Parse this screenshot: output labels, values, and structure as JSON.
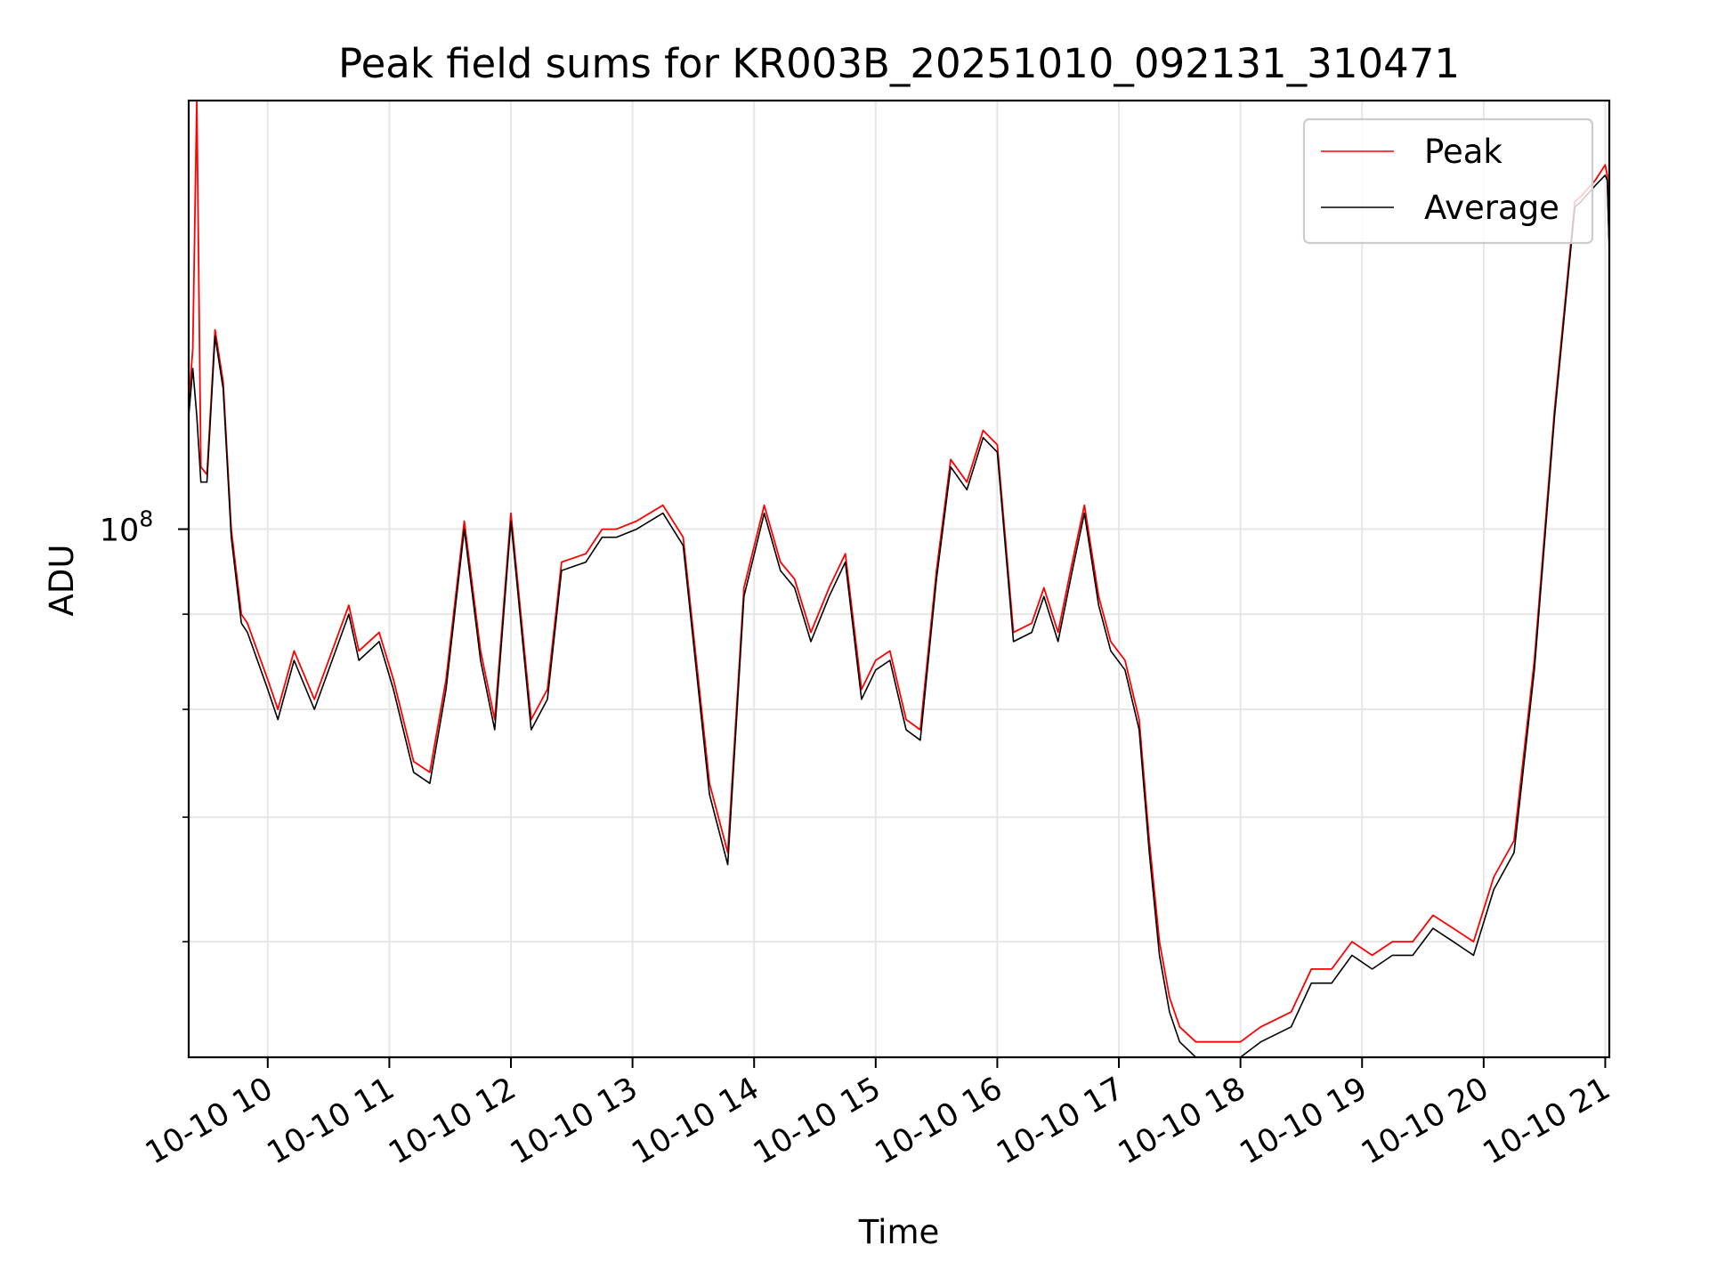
{
  "chart_data": {
    "type": "line",
    "title": "Peak field sums for KR003B_20251010_092131_310471",
    "xlabel": "Time",
    "ylabel": "ADU",
    "yscale": "log",
    "xlim": [
      "2025-10-10 09:21",
      "2025-10-10 21:02"
    ],
    "ylim": [
      52000000,
      170000000
    ],
    "grid": true,
    "legend": {
      "placement": "top-right",
      "entries": [
        "Peak",
        "Average"
      ]
    },
    "x_ticks": [
      "10-10 10",
      "10-10 11",
      "10-10 12",
      "10-10 13",
      "10-10 14",
      "10-10 15",
      "10-10 16",
      "10-10 17",
      "10-10 18",
      "10-10 19",
      "10-10 20",
      "10-10 21"
    ],
    "y_ticks": [
      {
        "value": 100000000,
        "base": "10",
        "exp": "8"
      }
    ],
    "y_minor_ticks": [
      60000000,
      70000000,
      80000000,
      90000000
    ],
    "colors": {
      "Peak": "#ff0000",
      "Average": "#000000"
    },
    "x": [
      "2025-10-10 09:21",
      "2025-10-10 09:23",
      "2025-10-10 09:25",
      "2025-10-10 09:27",
      "2025-10-10 09:30",
      "2025-10-10 09:34",
      "2025-10-10 09:38",
      "2025-10-10 09:42",
      "2025-10-10 09:47",
      "2025-10-10 09:50",
      "2025-10-10 10:00",
      "2025-10-10 10:05",
      "2025-10-10 10:13",
      "2025-10-10 10:23",
      "2025-10-10 10:40",
      "2025-10-10 10:45",
      "2025-10-10 10:55",
      "2025-10-10 11:02",
      "2025-10-10 11:12",
      "2025-10-10 11:20",
      "2025-10-10 11:28",
      "2025-10-10 11:37",
      "2025-10-10 11:45",
      "2025-10-10 11:52",
      "2025-10-10 12:00",
      "2025-10-10 12:10",
      "2025-10-10 12:18",
      "2025-10-10 12:25",
      "2025-10-10 12:37",
      "2025-10-10 12:45",
      "2025-10-10 12:52",
      "2025-10-10 13:02",
      "2025-10-10 13:15",
      "2025-10-10 13:25",
      "2025-10-10 13:38",
      "2025-10-10 13:47",
      "2025-10-10 13:55",
      "2025-10-10 14:05",
      "2025-10-10 14:13",
      "2025-10-10 14:20",
      "2025-10-10 14:28",
      "2025-10-10 14:37",
      "2025-10-10 14:45",
      "2025-10-10 14:53",
      "2025-10-10 15:00",
      "2025-10-10 15:07",
      "2025-10-10 15:15",
      "2025-10-10 15:22",
      "2025-10-10 15:30",
      "2025-10-10 15:37",
      "2025-10-10 15:45",
      "2025-10-10 15:53",
      "2025-10-10 16:00",
      "2025-10-10 16:08",
      "2025-10-10 16:17",
      "2025-10-10 16:23",
      "2025-10-10 16:30",
      "2025-10-10 16:37",
      "2025-10-10 16:43",
      "2025-10-10 16:50",
      "2025-10-10 16:56",
      "2025-10-10 17:03",
      "2025-10-10 17:10",
      "2025-10-10 17:15",
      "2025-10-10 17:20",
      "2025-10-10 17:25",
      "2025-10-10 17:30",
      "2025-10-10 17:38",
      "2025-10-10 17:45",
      "2025-10-10 17:50",
      "2025-10-10 18:00",
      "2025-10-10 18:10",
      "2025-10-10 18:25",
      "2025-10-10 18:35",
      "2025-10-10 18:45",
      "2025-10-10 18:55",
      "2025-10-10 19:05",
      "2025-10-10 19:15",
      "2025-10-10 19:25",
      "2025-10-10 19:35",
      "2025-10-10 19:45",
      "2025-10-10 19:55",
      "2025-10-10 20:05",
      "2025-10-10 20:15",
      "2025-10-10 20:25",
      "2025-10-10 20:35",
      "2025-10-10 20:45",
      "2025-10-10 20:48",
      "2025-10-10 20:55",
      "2025-10-10 21:00",
      "2025-10-10 21:01",
      "2025-10-10 21:02"
    ],
    "series": [
      {
        "name": "Peak",
        "values": [
          117000000,
          125000000,
          170000000,
          108000000,
          107000000,
          128000000,
          120000000,
          100000000,
          90000000,
          89000000,
          83000000,
          80000000,
          86000000,
          81000000,
          91000000,
          86000000,
          88000000,
          83000000,
          75000000,
          74000000,
          83000000,
          101000000,
          86000000,
          79000000,
          102000000,
          79000000,
          82000000,
          96000000,
          97000000,
          100000000,
          100000000,
          101000000,
          103000000,
          99000000,
          73000000,
          67000000,
          93000000,
          103000000,
          96000000,
          94000000,
          88000000,
          93000000,
          97000000,
          82000000,
          85000000,
          86000000,
          79000000,
          78000000,
          95000000,
          109000000,
          106000000,
          113000000,
          111000000,
          88000000,
          89000000,
          93000000,
          88000000,
          96000000,
          103000000,
          92000000,
          87000000,
          85000000,
          79000000,
          68000000,
          60000000,
          56000000,
          54000000,
          53000000,
          53000000,
          53000000,
          53000000,
          54000000,
          55000000,
          58000000,
          58000000,
          60000000,
          59000000,
          60000000,
          60000000,
          62000000,
          61000000,
          60000000,
          65000000,
          68000000,
          85000000,
          116000000,
          150000000,
          151000000,
          154000000,
          157000000,
          155000000,
          142000000
        ]
      },
      {
        "name": "Average",
        "values": [
          115000000,
          122000000,
          115000000,
          106000000,
          106000000,
          127000000,
          119000000,
          99000000,
          89000000,
          88000000,
          82000000,
          79000000,
          85000000,
          80000000,
          90000000,
          85000000,
          87000000,
          82000000,
          74000000,
          73000000,
          82000000,
          100000000,
          85000000,
          78000000,
          101000000,
          78000000,
          81000000,
          95000000,
          96000000,
          99000000,
          99000000,
          100000000,
          102000000,
          98000000,
          72000000,
          66000000,
          92000000,
          102000000,
          95000000,
          93000000,
          87000000,
          92000000,
          96000000,
          81000000,
          84000000,
          85000000,
          78000000,
          77000000,
          94000000,
          108000000,
          105000000,
          112000000,
          110000000,
          87000000,
          88000000,
          92000000,
          87000000,
          95000000,
          102000000,
          91000000,
          86000000,
          84000000,
          78000000,
          67000000,
          59000000,
          55000000,
          53000000,
          52000000,
          52000000,
          52000000,
          52000000,
          53000000,
          54000000,
          57000000,
          57000000,
          59000000,
          58000000,
          59000000,
          59000000,
          61000000,
          60000000,
          59000000,
          64000000,
          67000000,
          84000000,
          115000000,
          149000000,
          150000000,
          153000000,
          155000000,
          154000000,
          141000000
        ]
      }
    ]
  }
}
